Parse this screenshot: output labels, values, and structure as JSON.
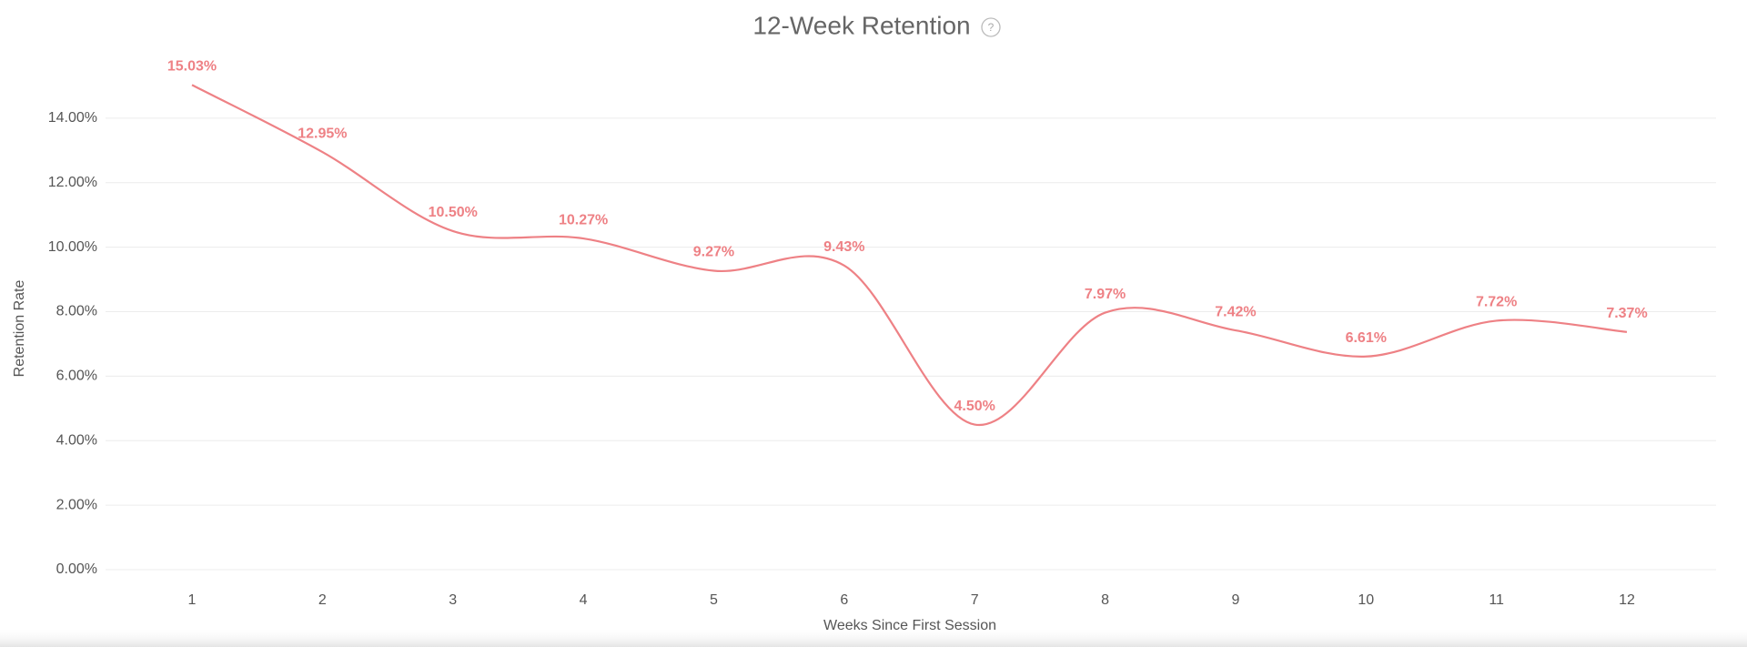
{
  "chart_data": {
    "type": "line",
    "title": "12-Week Retention",
    "help_icon": "?",
    "x_label": "Weeks Since First Session",
    "y_label": "Retention Rate",
    "categories": [
      "1",
      "2",
      "3",
      "4",
      "5",
      "6",
      "7",
      "8",
      "9",
      "10",
      "11",
      "12"
    ],
    "series": [
      {
        "name": "Retention Rate",
        "color": "#ee8185",
        "values": [
          15.03,
          12.95,
          10.5,
          10.27,
          9.27,
          9.43,
          4.5,
          7.97,
          7.42,
          6.61,
          7.72,
          7.37
        ],
        "value_labels": [
          "15.03%",
          "12.95%",
          "10.50%",
          "10.27%",
          "9.27%",
          "9.43%",
          "4.50%",
          "7.97%",
          "7.42%",
          "6.61%",
          "7.72%",
          "7.37%"
        ]
      }
    ],
    "ylim": [
      0,
      16
    ],
    "yticks": [
      {
        "value": 0,
        "label": "0.00%"
      },
      {
        "value": 2,
        "label": "2.00%"
      },
      {
        "value": 4,
        "label": "4.00%"
      },
      {
        "value": 6,
        "label": "6.00%"
      },
      {
        "value": 8,
        "label": "8.00%"
      },
      {
        "value": 10,
        "label": "10.00%"
      },
      {
        "value": 12,
        "label": "12.00%"
      },
      {
        "value": 14,
        "label": "14.00%"
      }
    ],
    "grid": true,
    "smooth": true
  }
}
